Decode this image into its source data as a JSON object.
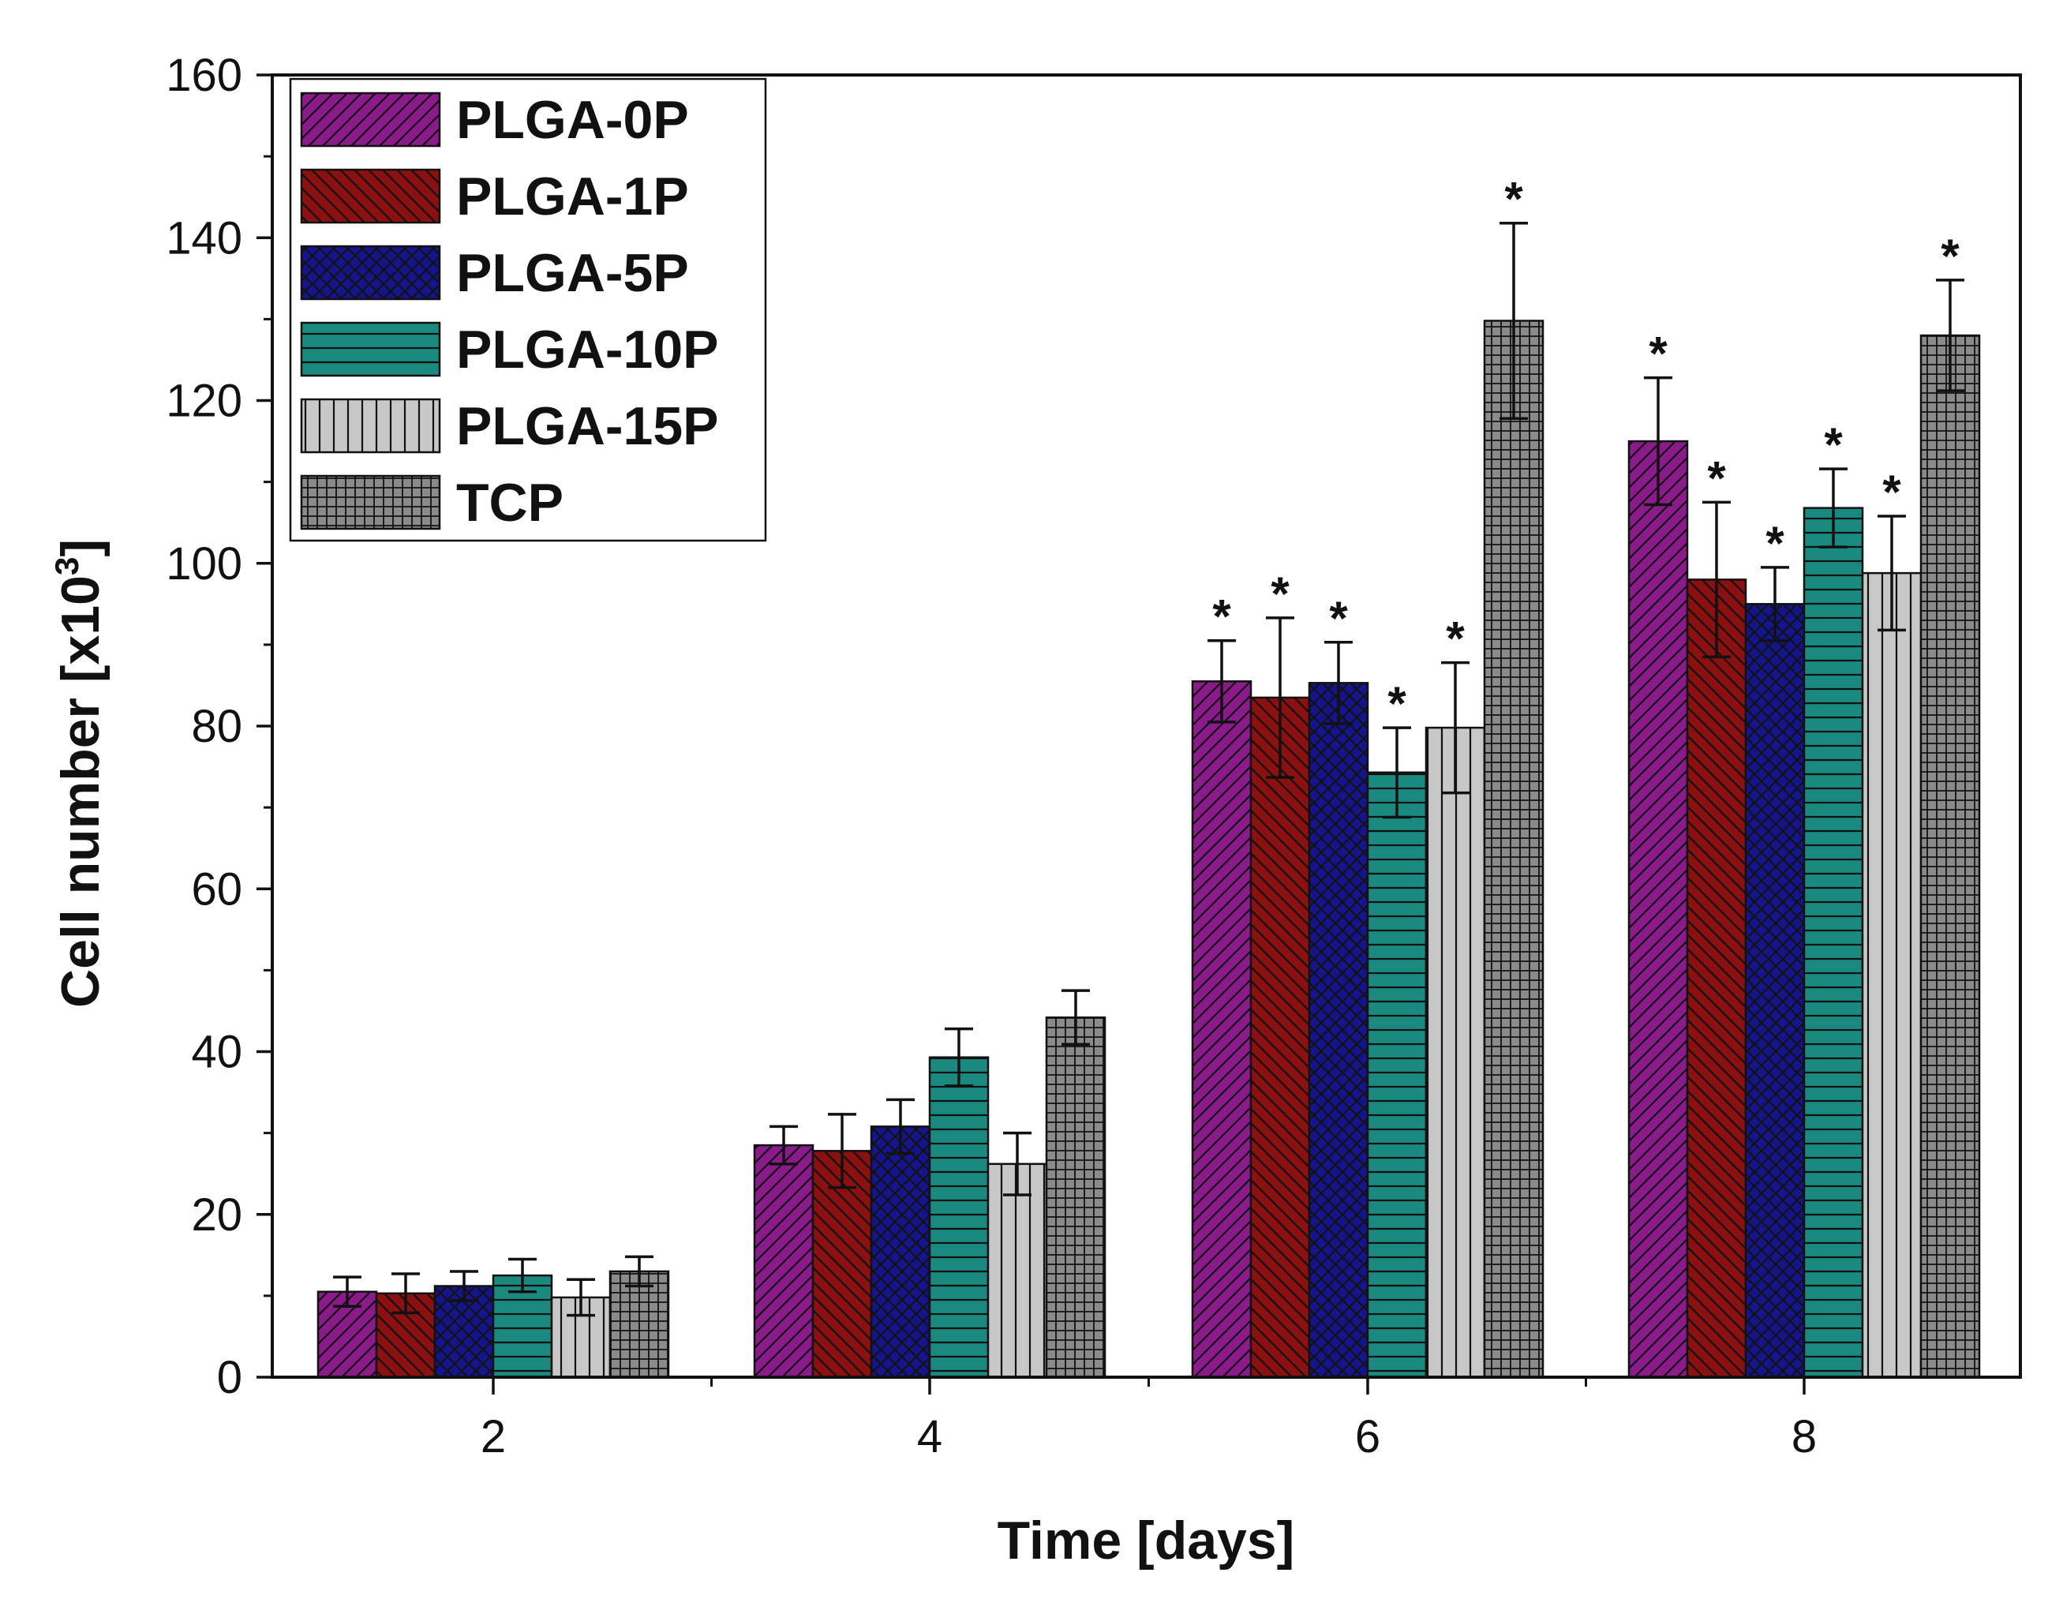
{
  "chart_data": {
    "type": "bar",
    "xlabel": "Time [days]",
    "ylabel": "Cell number [x10",
    "ylabel_sup": "3",
    "ylabel_end": "]",
    "ylim": [
      0,
      160
    ],
    "yticks": [
      0,
      20,
      40,
      60,
      80,
      100,
      120,
      140,
      160
    ],
    "categories": [
      "2",
      "4",
      "6",
      "8"
    ],
    "legend_position": "top-left",
    "grid": false,
    "series": [
      {
        "name": "PLGA-0P",
        "color": "#8b1a8b",
        "pattern": "diag-right",
        "values": [
          10.5,
          28.5,
          85.5,
          115.0
        ],
        "errors": [
          1.8,
          2.3,
          5.0,
          7.8
        ],
        "marks": [
          "",
          "",
          "*",
          "*"
        ]
      },
      {
        "name": "PLGA-1P",
        "color": "#8b1010",
        "pattern": "diag-left",
        "values": [
          10.3,
          27.8,
          83.5,
          98.0
        ],
        "errors": [
          2.4,
          4.5,
          9.8,
          9.5
        ],
        "marks": [
          "",
          "",
          "*",
          "*"
        ]
      },
      {
        "name": "PLGA-5P",
        "color": "#14148c",
        "pattern": "cross",
        "values": [
          11.2,
          30.8,
          85.3,
          95.0
        ],
        "errors": [
          1.8,
          3.3,
          5.0,
          4.5
        ],
        "marks": [
          "",
          "",
          "*",
          "*"
        ]
      },
      {
        "name": "PLGA-10P",
        "color": "#1a8a80",
        "pattern": "horizontal",
        "values": [
          12.5,
          39.3,
          74.3,
          106.8
        ],
        "errors": [
          2.0,
          3.5,
          5.5,
          4.8
        ],
        "marks": [
          "",
          "",
          "*",
          "*"
        ]
      },
      {
        "name": "PLGA-15P",
        "color": "#c8c8c8",
        "pattern": "vertical",
        "values": [
          9.8,
          26.2,
          79.8,
          98.8
        ],
        "errors": [
          2.2,
          3.8,
          8.0,
          7.0
        ],
        "marks": [
          "",
          "",
          "*",
          "*"
        ]
      },
      {
        "name": "TCP",
        "color": "#8a8a8a",
        "pattern": "grid",
        "values": [
          13.0,
          44.2,
          129.8,
          128.0
        ],
        "errors": [
          1.8,
          3.3,
          12.0,
          6.8
        ],
        "marks": [
          "",
          "",
          "*",
          "*"
        ]
      }
    ]
  }
}
